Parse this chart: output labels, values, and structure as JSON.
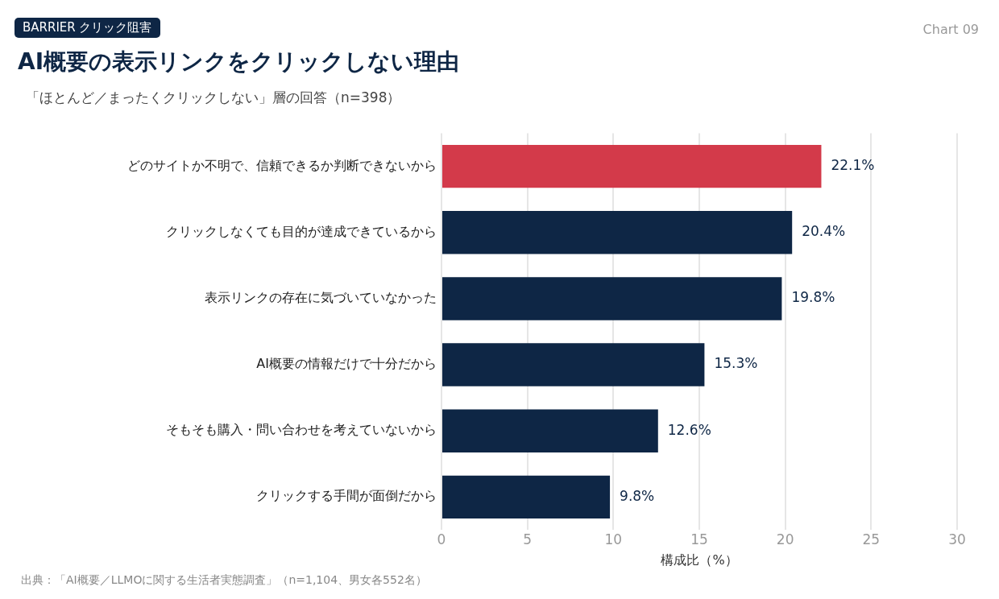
{
  "chart_data": {
    "type": "bar",
    "orientation": "horizontal",
    "title": "AI概要の表示リンクをクリックしない理由",
    "subtitle": "「ほとんど／まったくクリックしない」層の回答（n=398）",
    "xlabel": "構成比（%）",
    "categories": [
      "どのサイトか不明で、信頼できるか判断できないから",
      "クリックしなくても目的が達成できているから",
      "表示リンクの存在に気づいていなかった",
      "AI概要の情報だけで十分だから",
      "そもそも購入・問い合わせを考えていないから",
      "クリックする手間が面倒だから"
    ],
    "values": [
      22.1,
      20.4,
      19.8,
      15.3,
      12.6,
      9.8
    ],
    "colors": [
      "#d33a4a",
      "#0e2645",
      "#0e2645",
      "#0e2645",
      "#0e2645",
      "#0e2645"
    ],
    "value_labels": [
      "22.1%",
      "20.4%",
      "19.8%",
      "15.3%",
      "12.6%",
      "9.8%"
    ],
    "xlim": [
      0,
      30
    ],
    "xticks": [
      0,
      5,
      10,
      15,
      20,
      25,
      30
    ],
    "grid": "x",
    "legend": false,
    "annotations": [
      "BARRIER クリック阻害",
      "Chart 09",
      "出典：「AI概要／LLMOに関する生活者実態調査」（n=1,104、男女各552名）"
    ]
  }
}
